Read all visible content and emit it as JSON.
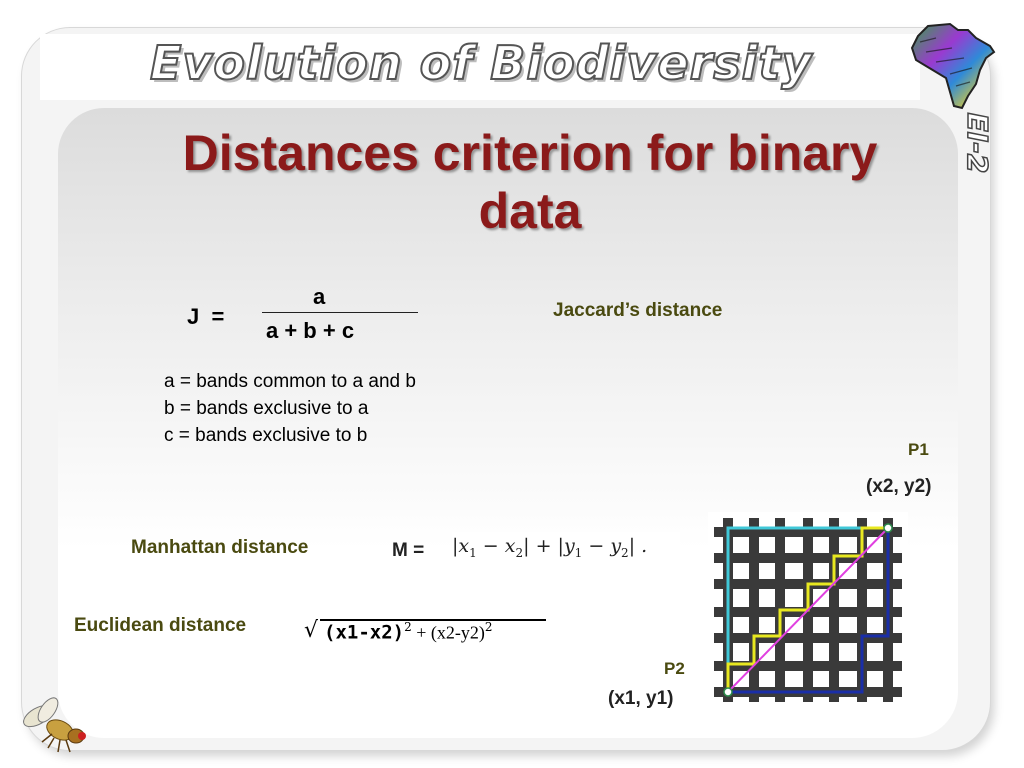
{
  "header": {
    "title": "Evolution of Biodiversity",
    "side_code": "EI-2"
  },
  "slide": {
    "title": "Distances criterion for binary data"
  },
  "jaccard": {
    "lhs": "J  =",
    "numerator": "a",
    "denominator": "a + b + c",
    "label": "Jaccard’s distance",
    "definitions": [
      "a = bands common to a and b",
      "b = bands exclusive to a",
      "c = bands exclusive to b"
    ]
  },
  "manhattan": {
    "label": "Manhattan distance",
    "lhs": "M =",
    "period": "."
  },
  "euclidean": {
    "label": "Euclidean distance",
    "radical": "√",
    "term1": "(x1-x2)",
    "exp1": "2",
    "plus_term": " + (x2-y2)",
    "exp2": "2"
  },
  "points": {
    "p1_label": "P1",
    "p1_coords": "(x2, y2)",
    "p2_label": "P2",
    "p2_coords": "(x1, y1)"
  },
  "colors": {
    "title_red": "#8b1a1a",
    "label_olive": "#4a4a10",
    "path_cyan": "#40c8d8",
    "path_yellow": "#e8e820",
    "path_blue": "#1a2ea8",
    "path_magenta": "#e040e0",
    "grid_dark": "#3a3a3a"
  },
  "icons": [
    "africa-map-logo-icon",
    "fruit-fly-icon"
  ]
}
